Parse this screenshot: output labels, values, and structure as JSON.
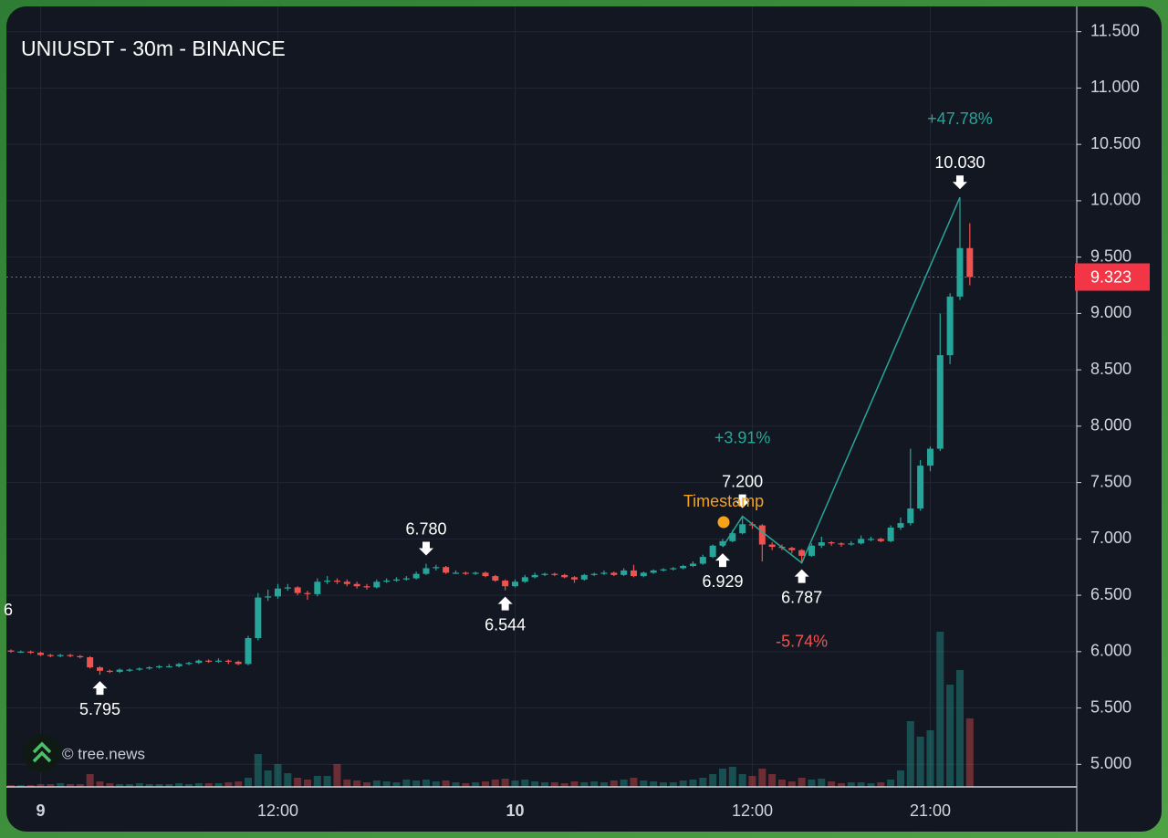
{
  "chart_data": {
    "type": "candlestick",
    "title": "UNIUSDT - 30m - BINANCE",
    "watermark": "© tree.news",
    "partial_label": "6",
    "event": {
      "label": "Timestamp",
      "color": "#f7a21b"
    },
    "up_color": "#26a69a",
    "down_color": "#ef5350",
    "grid": true,
    "categories": [
      null,
      null,
      null,
      "9",
      null,
      null,
      null,
      null,
      null,
      null,
      null,
      null,
      null,
      null,
      null,
      null,
      null,
      null,
      null,
      null,
      null,
      null,
      null,
      null,
      null,
      null,
      null,
      "12:00",
      null,
      null,
      null,
      null,
      null,
      null,
      null,
      null,
      null,
      null,
      null,
      null,
      null,
      null,
      null,
      null,
      null,
      null,
      null,
      null,
      null,
      null,
      null,
      "10",
      null,
      null,
      null,
      null,
      null,
      null,
      null,
      null,
      null,
      null,
      null,
      null,
      null,
      null,
      null,
      null,
      null,
      null,
      null,
      null,
      null,
      null,
      null,
      "12:00",
      null,
      null,
      null,
      null,
      null,
      null,
      null,
      null,
      null,
      null,
      null,
      null,
      null,
      null,
      null,
      null,
      null,
      "21:00",
      null,
      null,
      null,
      null
    ],
    "open": [
      6.01,
      6.0,
      6.0,
      5.99,
      5.97,
      5.96,
      5.97,
      5.96,
      5.95,
      5.86,
      5.83,
      5.82,
      5.84,
      5.84,
      5.85,
      5.86,
      5.87,
      5.87,
      5.89,
      5.9,
      5.92,
      5.91,
      5.92,
      5.91,
      5.89,
      6.12,
      6.48,
      6.49,
      6.56,
      6.57,
      6.52,
      6.51,
      6.62,
      6.63,
      6.62,
      6.6,
      6.58,
      6.57,
      6.62,
      6.63,
      6.64,
      6.65,
      6.69,
      6.74,
      6.75,
      6.7,
      6.7,
      6.69,
      6.7,
      6.67,
      6.63,
      6.58,
      6.62,
      6.66,
      6.68,
      6.69,
      6.68,
      6.66,
      6.64,
      6.68,
      6.69,
      6.7,
      6.68,
      6.72,
      6.67,
      6.7,
      6.72,
      6.73,
      6.74,
      6.76,
      6.78,
      6.84,
      6.94,
      6.98,
      7.05,
      7.13,
      7.12,
      6.95,
      6.93,
      6.92,
      6.9,
      6.85,
      6.94,
      6.97,
      6.96,
      6.95,
      6.96,
      7.0,
      7.0,
      6.98,
      7.1,
      7.14,
      7.27,
      7.65,
      7.8,
      8.63,
      9.15,
      9.58
    ],
    "high": [
      6.02,
      6.01,
      6.01,
      6.0,
      5.98,
      5.98,
      5.98,
      5.97,
      5.96,
      5.87,
      5.84,
      5.85,
      5.85,
      5.86,
      5.87,
      5.88,
      5.89,
      5.9,
      5.91,
      5.93,
      5.93,
      5.94,
      5.93,
      5.92,
      6.14,
      6.52,
      6.55,
      6.6,
      6.6,
      6.58,
      6.54,
      6.65,
      6.67,
      6.65,
      6.64,
      6.62,
      6.6,
      6.64,
      6.65,
      6.66,
      6.67,
      6.71,
      6.78,
      6.77,
      6.76,
      6.72,
      6.71,
      6.71,
      6.71,
      6.68,
      6.64,
      6.64,
      6.68,
      6.7,
      6.7,
      6.7,
      6.69,
      6.67,
      6.69,
      6.7,
      6.72,
      6.71,
      6.74,
      6.77,
      6.71,
      6.73,
      6.74,
      6.75,
      6.77,
      6.8,
      6.86,
      6.95,
      7.0,
      7.08,
      7.2,
      7.15,
      7.13,
      6.97,
      6.95,
      6.93,
      6.91,
      6.96,
      7.02,
      6.98,
      6.97,
      6.98,
      7.03,
      7.02,
      7.01,
      7.12,
      7.19,
      7.8,
      7.7,
      7.82,
      9.0,
      9.18,
      10.03,
      9.8
    ],
    "low": [
      5.99,
      5.99,
      5.98,
      5.96,
      5.95,
      5.95,
      5.95,
      5.94,
      5.85,
      5.795,
      5.81,
      5.81,
      5.82,
      5.83,
      5.84,
      5.85,
      5.86,
      5.86,
      5.88,
      5.89,
      5.9,
      5.9,
      5.89,
      5.88,
      5.88,
      6.1,
      6.45,
      6.47,
      6.54,
      6.5,
      6.46,
      6.49,
      6.6,
      6.6,
      6.58,
      6.56,
      6.55,
      6.56,
      6.61,
      6.62,
      6.63,
      6.64,
      6.68,
      6.72,
      6.69,
      6.69,
      6.68,
      6.68,
      6.66,
      6.62,
      6.544,
      6.57,
      6.61,
      6.65,
      6.67,
      6.67,
      6.65,
      6.61,
      6.63,
      6.67,
      6.68,
      6.67,
      6.67,
      6.66,
      6.66,
      6.69,
      6.71,
      6.72,
      6.73,
      6.75,
      6.77,
      6.83,
      6.929,
      6.97,
      7.04,
      7.09,
      6.8,
      6.9,
      6.9,
      6.87,
      6.787,
      6.84,
      6.92,
      6.94,
      6.93,
      6.94,
      6.95,
      6.98,
      6.97,
      6.97,
      7.08,
      7.12,
      7.25,
      7.6,
      7.78,
      8.55,
      9.12,
      9.25
    ],
    "close": [
      6.0,
      6.0,
      5.99,
      5.97,
      5.96,
      5.97,
      5.96,
      5.95,
      5.86,
      5.83,
      5.82,
      5.84,
      5.84,
      5.85,
      5.86,
      5.87,
      5.87,
      5.89,
      5.9,
      5.92,
      5.91,
      5.92,
      5.91,
      5.89,
      6.12,
      6.48,
      6.49,
      6.56,
      6.57,
      6.52,
      6.51,
      6.62,
      6.63,
      6.62,
      6.6,
      6.58,
      6.57,
      6.62,
      6.63,
      6.64,
      6.65,
      6.69,
      6.74,
      6.75,
      6.7,
      6.7,
      6.69,
      6.7,
      6.67,
      6.63,
      6.58,
      6.62,
      6.66,
      6.68,
      6.69,
      6.68,
      6.66,
      6.64,
      6.68,
      6.69,
      6.7,
      6.68,
      6.72,
      6.67,
      6.7,
      6.72,
      6.73,
      6.74,
      6.76,
      6.78,
      6.84,
      6.94,
      6.98,
      7.05,
      7.13,
      7.12,
      6.95,
      6.93,
      6.92,
      6.9,
      6.85,
      6.94,
      6.97,
      6.96,
      6.95,
      6.96,
      7.0,
      7.0,
      6.98,
      7.1,
      7.14,
      7.27,
      7.65,
      7.8,
      8.63,
      9.15,
      9.58,
      9.323
    ],
    "volume": [
      2,
      2,
      2,
      3,
      3,
      4,
      3,
      3,
      14,
      6,
      4,
      3,
      3,
      4,
      3,
      3,
      3,
      4,
      3,
      4,
      4,
      4,
      5,
      6,
      10,
      36,
      18,
      25,
      15,
      10,
      8,
      12,
      12,
      25,
      8,
      7,
      5,
      7,
      6,
      5,
      8,
      7,
      8,
      6,
      7,
      5,
      4,
      5,
      6,
      8,
      9,
      7,
      8,
      6,
      5,
      5,
      4,
      6,
      5,
      6,
      5,
      7,
      8,
      10,
      7,
      6,
      5,
      5,
      7,
      8,
      10,
      14,
      20,
      22,
      14,
      12,
      20,
      14,
      8,
      6,
      10,
      8,
      9,
      6,
      4,
      5,
      5,
      4,
      5,
      8,
      18,
      72,
      55,
      62,
      170,
      112,
      128,
      75
    ],
    "ylim": [
      4.8,
      11.7
    ],
    "yticks": [
      {
        "value": 5,
        "label": "5.000"
      },
      {
        "value": 5.5,
        "label": "5.500"
      },
      {
        "value": 6,
        "label": "6.000"
      },
      {
        "value": 6.5,
        "label": "6.500"
      },
      {
        "value": 7,
        "label": "7.000"
      },
      {
        "value": 7.5,
        "label": "7.500"
      },
      {
        "value": 8,
        "label": "8.000"
      },
      {
        "value": 8.5,
        "label": "8.500"
      },
      {
        "value": 9,
        "label": "9.000"
      },
      {
        "value": 9.5,
        "label": "9.500"
      },
      {
        "value": 10,
        "label": "10.000"
      },
      {
        "value": 10.5,
        "label": "10.500"
      },
      {
        "value": 11,
        "label": "11.000"
      },
      {
        "value": 11.5,
        "label": "11.500"
      }
    ],
    "last_price": 9.323,
    "pivots": [
      {
        "value": 5.795,
        "label": "5.795"
      },
      {
        "value": 6.78,
        "label": "6.780"
      },
      {
        "value": 6.544,
        "label": "6.544"
      },
      {
        "value": 6.929,
        "label": "6.929"
      },
      {
        "value": 7.2,
        "label": "7.200"
      },
      {
        "value": 6.787,
        "label": "6.787"
      },
      {
        "value": 10.03,
        "label": "10.030"
      }
    ],
    "zigzag_changes": [
      {
        "value": 3.91,
        "label": "+3.91%"
      },
      {
        "value": -5.74,
        "label": "-5.74%"
      },
      {
        "value": 47.78,
        "label": "+47.78%"
      }
    ]
  }
}
